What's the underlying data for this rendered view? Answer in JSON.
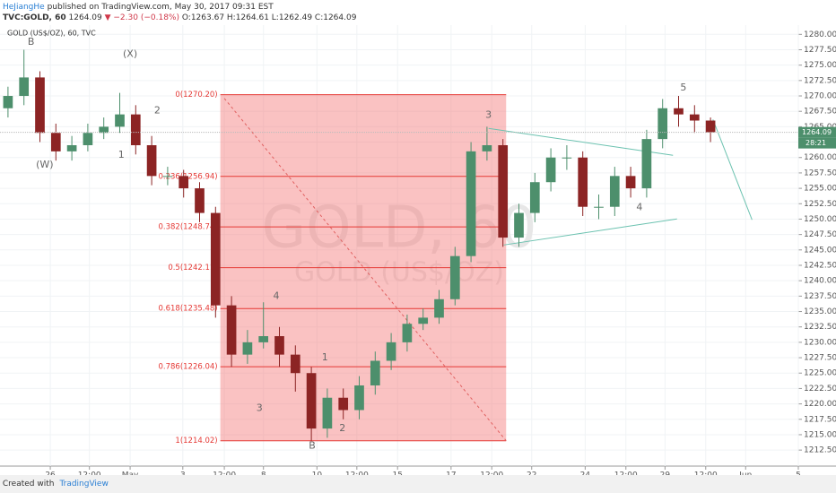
{
  "header": {
    "author": "HeJiangHe",
    "published": "published on TradingView.com, May 30, 2017 09:31 EST",
    "symbol": "TVC:GOLD, 60",
    "last": "1264.09",
    "change": "▼ −2.30 (−0.18%)",
    "ohlc": "O:1263.67 H:1264.61 L:1262.49 C:1264.09"
  },
  "footer": {
    "created": "Created with",
    "brand": "TradingView"
  },
  "chart_data": {
    "type": "candlestick",
    "title": "GOLD (US$/OZ), 60, TVC",
    "watermark": [
      "GOLD, 60",
      "GOLD (US$/OZ)"
    ],
    "up_color": "#4d8f6c",
    "down_color": "#8c2424",
    "grid": true,
    "x": [
      1,
      3,
      5,
      7,
      9,
      11,
      13,
      15,
      17,
      19,
      21,
      23,
      25,
      27,
      29,
      31,
      33,
      35,
      37,
      39,
      41,
      43,
      45,
      47,
      49,
      51,
      53,
      55,
      57,
      59,
      61,
      63,
      65,
      67,
      69,
      71,
      73,
      75,
      77,
      79,
      81,
      83,
      85,
      87,
      89
    ],
    "open": [
      1268,
      1270,
      1273,
      1264,
      1261,
      1262,
      1264,
      1265,
      1267,
      1262,
      1257,
      1257,
      1255,
      1251,
      1236,
      1228,
      1230,
      1231,
      1228,
      1225,
      1216,
      1221,
      1219,
      1223,
      1227,
      1230,
      1233,
      1234,
      1237,
      1244,
      1261,
      1262,
      1247,
      1251,
      1256,
      1260,
      1260,
      1252,
      1252,
      1257,
      1255,
      1263,
      1268,
      1267,
      1266
    ],
    "high": [
      1271.5,
      1277.5,
      1274,
      1265.5,
      1263.5,
      1265.5,
      1266.5,
      1270.5,
      1268.5,
      1263.5,
      1258.5,
      1258,
      1256,
      1252,
      1237.5,
      1232,
      1236.5,
      1232.5,
      1229.5,
      1226,
      1222.5,
      1222.5,
      1224.5,
      1228.5,
      1231.5,
      1234.5,
      1235.5,
      1238.5,
      1245.5,
      1262.5,
      1265,
      1263,
      1252.5,
      1257.5,
      1261.5,
      1262,
      1261,
      1254,
      1258.5,
      1258.5,
      1264.5,
      1269.5,
      1270,
      1268.5,
      1266.5
    ],
    "low": [
      1266.5,
      1268.5,
      1262.5,
      1259.5,
      1259.5,
      1261,
      1263,
      1264,
      1260.5,
      1255.5,
      1255.5,
      1253.5,
      1249.5,
      1234,
      1226,
      1226.5,
      1229,
      1226,
      1222,
      1214,
      1214.5,
      1217.5,
      1217.5,
      1221.5,
      1225.5,
      1228.5,
      1232,
      1233,
      1236,
      1243,
      1259.5,
      1245.5,
      1245.5,
      1249.5,
      1254.5,
      1258,
      1250.5,
      1250,
      1250.5,
      1253.5,
      1253.5,
      1261.5,
      1265,
      1264,
      1262.5
    ],
    "close": [
      1270,
      1273,
      1264,
      1261,
      1262,
      1264,
      1265,
      1267,
      1262,
      1257,
      1257,
      1255,
      1251,
      1236,
      1228,
      1230,
      1231,
      1228,
      1225,
      1216,
      1221,
      1219,
      1223,
      1227,
      1230,
      1233,
      1234,
      1237,
      1244,
      1261,
      1262,
      1247,
      1251,
      1256,
      1260,
      1260,
      1252,
      1252,
      1257,
      1255,
      1263,
      1268,
      1267,
      1266,
      1264.09
    ],
    "last_price": 1264.09,
    "countdown": "28:21",
    "xlim": [
      0,
      100
    ],
    "xticks": [
      {
        "value": 6.3,
        "label": "26"
      },
      {
        "value": 11.2,
        "label": "12:00"
      },
      {
        "value": 16.3,
        "label": "May"
      },
      {
        "value": 22.9,
        "label": "3"
      },
      {
        "value": 28.1,
        "label": "12:00"
      },
      {
        "value": 33,
        "label": "8"
      },
      {
        "value": 39.7,
        "label": "10"
      },
      {
        "value": 44.7,
        "label": "12:00"
      },
      {
        "value": 49.8,
        "label": "15"
      },
      {
        "value": 56.5,
        "label": "17"
      },
      {
        "value": 61.6,
        "label": "12:00"
      },
      {
        "value": 66.6,
        "label": "22"
      },
      {
        "value": 73.3,
        "label": "24"
      },
      {
        "value": 78.4,
        "label": "12:00"
      },
      {
        "value": 83.3,
        "label": "29"
      },
      {
        "value": 88.4,
        "label": "12:00"
      },
      {
        "value": 93.4,
        "label": "Jun"
      },
      {
        "value": 100,
        "label": "5"
      }
    ],
    "ylim": [
      1209.9,
      1281.5
    ],
    "yticks": [
      {
        "value": 1212.5,
        "label": "1212.50"
      },
      {
        "value": 1215,
        "label": "1215.00"
      },
      {
        "value": 1217.5,
        "label": "1217.50"
      },
      {
        "value": 1220,
        "label": "1220.00"
      },
      {
        "value": 1222.5,
        "label": "1222.50"
      },
      {
        "value": 1225,
        "label": "1225.00"
      },
      {
        "value": 1227.5,
        "label": "1227.50"
      },
      {
        "value": 1230,
        "label": "1230.00"
      },
      {
        "value": 1232.5,
        "label": "1232.50"
      },
      {
        "value": 1235,
        "label": "1235.00"
      },
      {
        "value": 1237.5,
        "label": "1237.50"
      },
      {
        "value": 1240,
        "label": "1240.00"
      },
      {
        "value": 1242.5,
        "label": "1242.50"
      },
      {
        "value": 1245,
        "label": "1245.00"
      },
      {
        "value": 1247.5,
        "label": "1247.50"
      },
      {
        "value": 1250,
        "label": "1250.00"
      },
      {
        "value": 1252.5,
        "label": "1252.50"
      },
      {
        "value": 1255,
        "label": "1255.00"
      },
      {
        "value": 1257.5,
        "label": "1257.50"
      },
      {
        "value": 1260,
        "label": "1260.00"
      },
      {
        "value": 1262.5,
        "label": "1262.50"
      },
      {
        "value": 1265,
        "label": "1265.00"
      },
      {
        "value": 1267.5,
        "label": "1267.50"
      },
      {
        "value": 1270,
        "label": "1270.00"
      },
      {
        "value": 1272.5,
        "label": "1272.50"
      },
      {
        "value": 1275,
        "label": "1275.00"
      },
      {
        "value": 1277.5,
        "label": "1277.50"
      },
      {
        "value": 1280,
        "label": "1280.00"
      }
    ],
    "fib_x": [
      27.6,
      63.4
    ],
    "fib_levels": [
      {
        "value": 1270.2,
        "label": "0(1270.20)"
      },
      {
        "value": 1256.94,
        "label": "0.236(1256.94)"
      },
      {
        "value": 1248.74,
        "label": "0.382(1248.74)"
      },
      {
        "value": 1242.11,
        "label": "0.5(1242.11)"
      },
      {
        "value": 1235.48,
        "label": "0.618(1235.48)"
      },
      {
        "value": 1226.04,
        "label": "0.786(1226.04)"
      },
      {
        "value": 1214.02,
        "label": "1(1214.02)"
      }
    ],
    "trend_lines": [
      {
        "x": [
          28.1,
          63.4
        ],
        "y": [
          1269.6,
          1214.02
        ],
        "dashed": true,
        "color": "#e06060"
      },
      {
        "x": [
          61.2,
          84.3
        ],
        "y": [
          1264.73,
          1260.36
        ],
        "dashed": false,
        "color": "#6cc2b0"
      },
      {
        "x": [
          63.1,
          84.8
        ],
        "y": [
          1245.8,
          1250.03
        ],
        "dashed": false,
        "color": "#6cc2b0"
      },
      {
        "x": [
          89.3,
          94.2
        ],
        "y": [
          1266.18,
          1249.89
        ],
        "dashed": false,
        "color": "#6cc2b0"
      }
    ],
    "annotations": [
      {
        "text": "B",
        "x": 3.9,
        "y": 1278.7
      },
      {
        "text": "(X)",
        "x": 16.3,
        "y": 1276.8
      },
      {
        "text": "2",
        "x": 19.7,
        "y": 1267.6
      },
      {
        "text": "1",
        "x": 15.2,
        "y": 1260.4
      },
      {
        "text": "(W)",
        "x": 5.6,
        "y": 1258.8
      },
      {
        "text": "3",
        "x": 61.2,
        "y": 1266.9
      },
      {
        "text": "4",
        "x": 34.6,
        "y": 1237.5
      },
      {
        "text": "3",
        "x": 32.5,
        "y": 1219.3
      },
      {
        "text": "1",
        "x": 40.7,
        "y": 1227.5
      },
      {
        "text": "B",
        "x": 39.1,
        "y": 1213.2
      },
      {
        "text": "2",
        "x": 42.9,
        "y": 1216
      },
      {
        "text": "4",
        "x": 80.1,
        "y": 1251.9
      },
      {
        "text": "5",
        "x": 85.6,
        "y": 1271.3
      }
    ]
  }
}
